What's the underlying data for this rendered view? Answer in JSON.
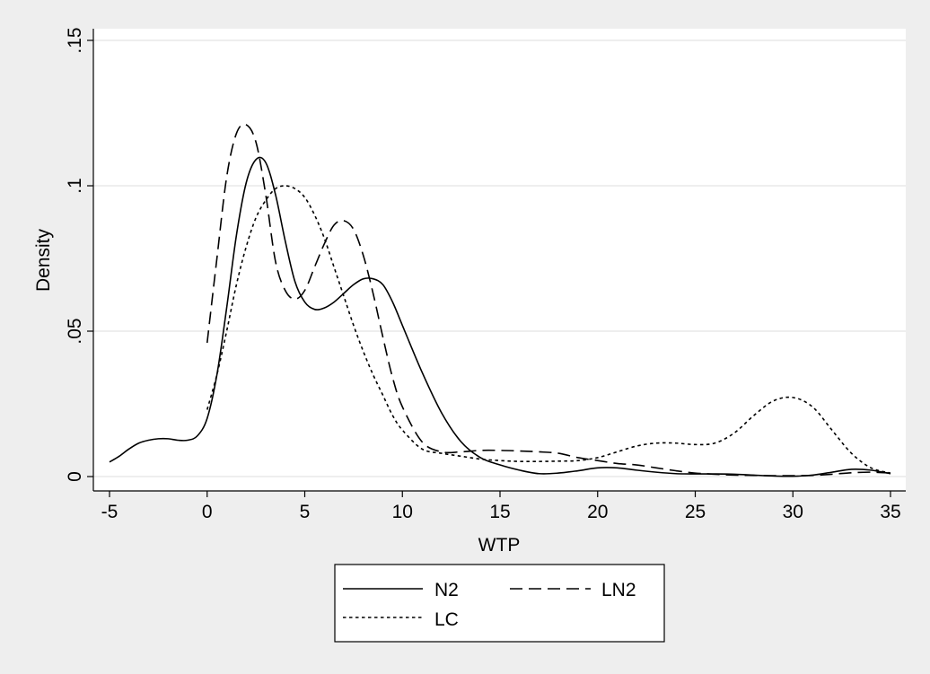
{
  "chart_data": {
    "type": "line",
    "title": "",
    "xlabel": "WTP",
    "ylabel": "Density",
    "xlim": [
      -5,
      35
    ],
    "ylim": [
      0,
      0.15
    ],
    "x_ticks": [
      -5,
      0,
      5,
      10,
      15,
      20,
      25,
      30,
      35
    ],
    "x_tick_labels": [
      "-5",
      "0",
      "5",
      "10",
      "15",
      "20",
      "25",
      "30",
      "35"
    ],
    "y_ticks": [
      0,
      0.05,
      0.1,
      0.15
    ],
    "y_tick_labels": [
      "0",
      ".05",
      ".1",
      ".15"
    ],
    "grid": "horizontal",
    "legend_position": "bottom",
    "background": "#eeeeee",
    "plot_background": "#ffffff",
    "series": [
      {
        "name": "N2",
        "dash": "solid",
        "points": [
          [
            -5,
            0.005
          ],
          [
            -4.5,
            0.007
          ],
          [
            -4,
            0.0095
          ],
          [
            -3.5,
            0.0115
          ],
          [
            -3,
            0.0125
          ],
          [
            -2.5,
            0.013
          ],
          [
            -2,
            0.013
          ],
          [
            -1.5,
            0.0125
          ],
          [
            -1,
            0.0125
          ],
          [
            -0.5,
            0.014
          ],
          [
            0,
            0.02
          ],
          [
            0.5,
            0.035
          ],
          [
            1,
            0.058
          ],
          [
            1.5,
            0.083
          ],
          [
            2,
            0.101
          ],
          [
            2.5,
            0.109
          ],
          [
            3,
            0.108
          ],
          [
            3.5,
            0.097
          ],
          [
            4,
            0.081
          ],
          [
            4.5,
            0.067
          ],
          [
            5,
            0.06
          ],
          [
            5.5,
            0.0575
          ],
          [
            6,
            0.058
          ],
          [
            6.5,
            0.06
          ],
          [
            7,
            0.063
          ],
          [
            7.5,
            0.066
          ],
          [
            8,
            0.068
          ],
          [
            8.5,
            0.068
          ],
          [
            9,
            0.066
          ],
          [
            9.5,
            0.06
          ],
          [
            10,
            0.052
          ],
          [
            11,
            0.036
          ],
          [
            12,
            0.022
          ],
          [
            13,
            0.012
          ],
          [
            14,
            0.0065
          ],
          [
            15,
            0.004
          ],
          [
            16,
            0.0022
          ],
          [
            17,
            0.001
          ],
          [
            18,
            0.0012
          ],
          [
            19,
            0.002
          ],
          [
            20,
            0.003
          ],
          [
            21,
            0.003
          ],
          [
            22,
            0.0022
          ],
          [
            23,
            0.0015
          ],
          [
            24,
            0.001
          ],
          [
            25,
            0.0009
          ],
          [
            26,
            0.0009
          ],
          [
            27,
            0.0008
          ],
          [
            28,
            0.0005
          ],
          [
            29,
            0.0002
          ],
          [
            30,
            0.0001
          ],
          [
            31,
            0.0005
          ],
          [
            32,
            0.0015
          ],
          [
            33,
            0.0025
          ],
          [
            34,
            0.0022
          ],
          [
            35,
            0.001
          ]
        ]
      },
      {
        "name": "LN2",
        "dash": "long-dash",
        "points": [
          [
            0,
            0.046
          ],
          [
            0.5,
            0.075
          ],
          [
            1,
            0.103
          ],
          [
            1.5,
            0.118
          ],
          [
            2,
            0.121
          ],
          [
            2.5,
            0.115
          ],
          [
            3,
            0.097
          ],
          [
            3.5,
            0.074
          ],
          [
            4,
            0.064
          ],
          [
            4.5,
            0.061
          ],
          [
            5,
            0.064
          ],
          [
            5.5,
            0.072
          ],
          [
            6,
            0.08
          ],
          [
            6.5,
            0.0865
          ],
          [
            7,
            0.088
          ],
          [
            7.5,
            0.085
          ],
          [
            8,
            0.076
          ],
          [
            8.5,
            0.063
          ],
          [
            9,
            0.048
          ],
          [
            9.5,
            0.034
          ],
          [
            10,
            0.024
          ],
          [
            11,
            0.012
          ],
          [
            12,
            0.0085
          ],
          [
            13,
            0.0085
          ],
          [
            14,
            0.009
          ],
          [
            15,
            0.009
          ],
          [
            16,
            0.0088
          ],
          [
            17,
            0.0085
          ],
          [
            18,
            0.008
          ],
          [
            19,
            0.0065
          ],
          [
            20,
            0.0055
          ],
          [
            21,
            0.0045
          ],
          [
            22,
            0.004
          ],
          [
            23,
            0.003
          ],
          [
            24,
            0.002
          ],
          [
            25,
            0.0012
          ],
          [
            26,
            0.0008
          ],
          [
            27,
            0.0005
          ],
          [
            28,
            0.0004
          ],
          [
            29,
            0.0003
          ],
          [
            30,
            0.0003
          ],
          [
            31,
            0.0004
          ],
          [
            32,
            0.0008
          ],
          [
            33,
            0.0013
          ],
          [
            34,
            0.0015
          ],
          [
            35,
            0.0012
          ]
        ]
      },
      {
        "name": "LC",
        "dash": "short-dash",
        "points": [
          [
            0,
            0.023
          ],
          [
            0.5,
            0.035
          ],
          [
            1,
            0.05
          ],
          [
            1.5,
            0.066
          ],
          [
            2,
            0.079
          ],
          [
            2.5,
            0.089
          ],
          [
            3,
            0.095
          ],
          [
            3.5,
            0.099
          ],
          [
            4,
            0.1
          ],
          [
            4.5,
            0.099
          ],
          [
            5,
            0.096
          ],
          [
            5.5,
            0.09
          ],
          [
            6,
            0.082
          ],
          [
            6.5,
            0.072
          ],
          [
            7,
            0.062
          ],
          [
            7.5,
            0.052
          ],
          [
            8,
            0.043
          ],
          [
            8.5,
            0.035
          ],
          [
            9,
            0.028
          ],
          [
            9.5,
            0.021
          ],
          [
            10,
            0.016
          ],
          [
            11,
            0.0095
          ],
          [
            12,
            0.008
          ],
          [
            13,
            0.007
          ],
          [
            14,
            0.006
          ],
          [
            15,
            0.0055
          ],
          [
            16,
            0.0052
          ],
          [
            17,
            0.0052
          ],
          [
            18,
            0.0053
          ],
          [
            19,
            0.0055
          ],
          [
            20,
            0.0065
          ],
          [
            21,
            0.0085
          ],
          [
            22,
            0.0105
          ],
          [
            23,
            0.0115
          ],
          [
            24,
            0.0115
          ],
          [
            25,
            0.011
          ],
          [
            26,
            0.0115
          ],
          [
            27,
            0.015
          ],
          [
            28,
            0.021
          ],
          [
            29,
            0.026
          ],
          [
            30,
            0.0272
          ],
          [
            31,
            0.024
          ],
          [
            32,
            0.016
          ],
          [
            33,
            0.008
          ],
          [
            34,
            0.003
          ],
          [
            35,
            0.0012
          ]
        ]
      }
    ]
  }
}
